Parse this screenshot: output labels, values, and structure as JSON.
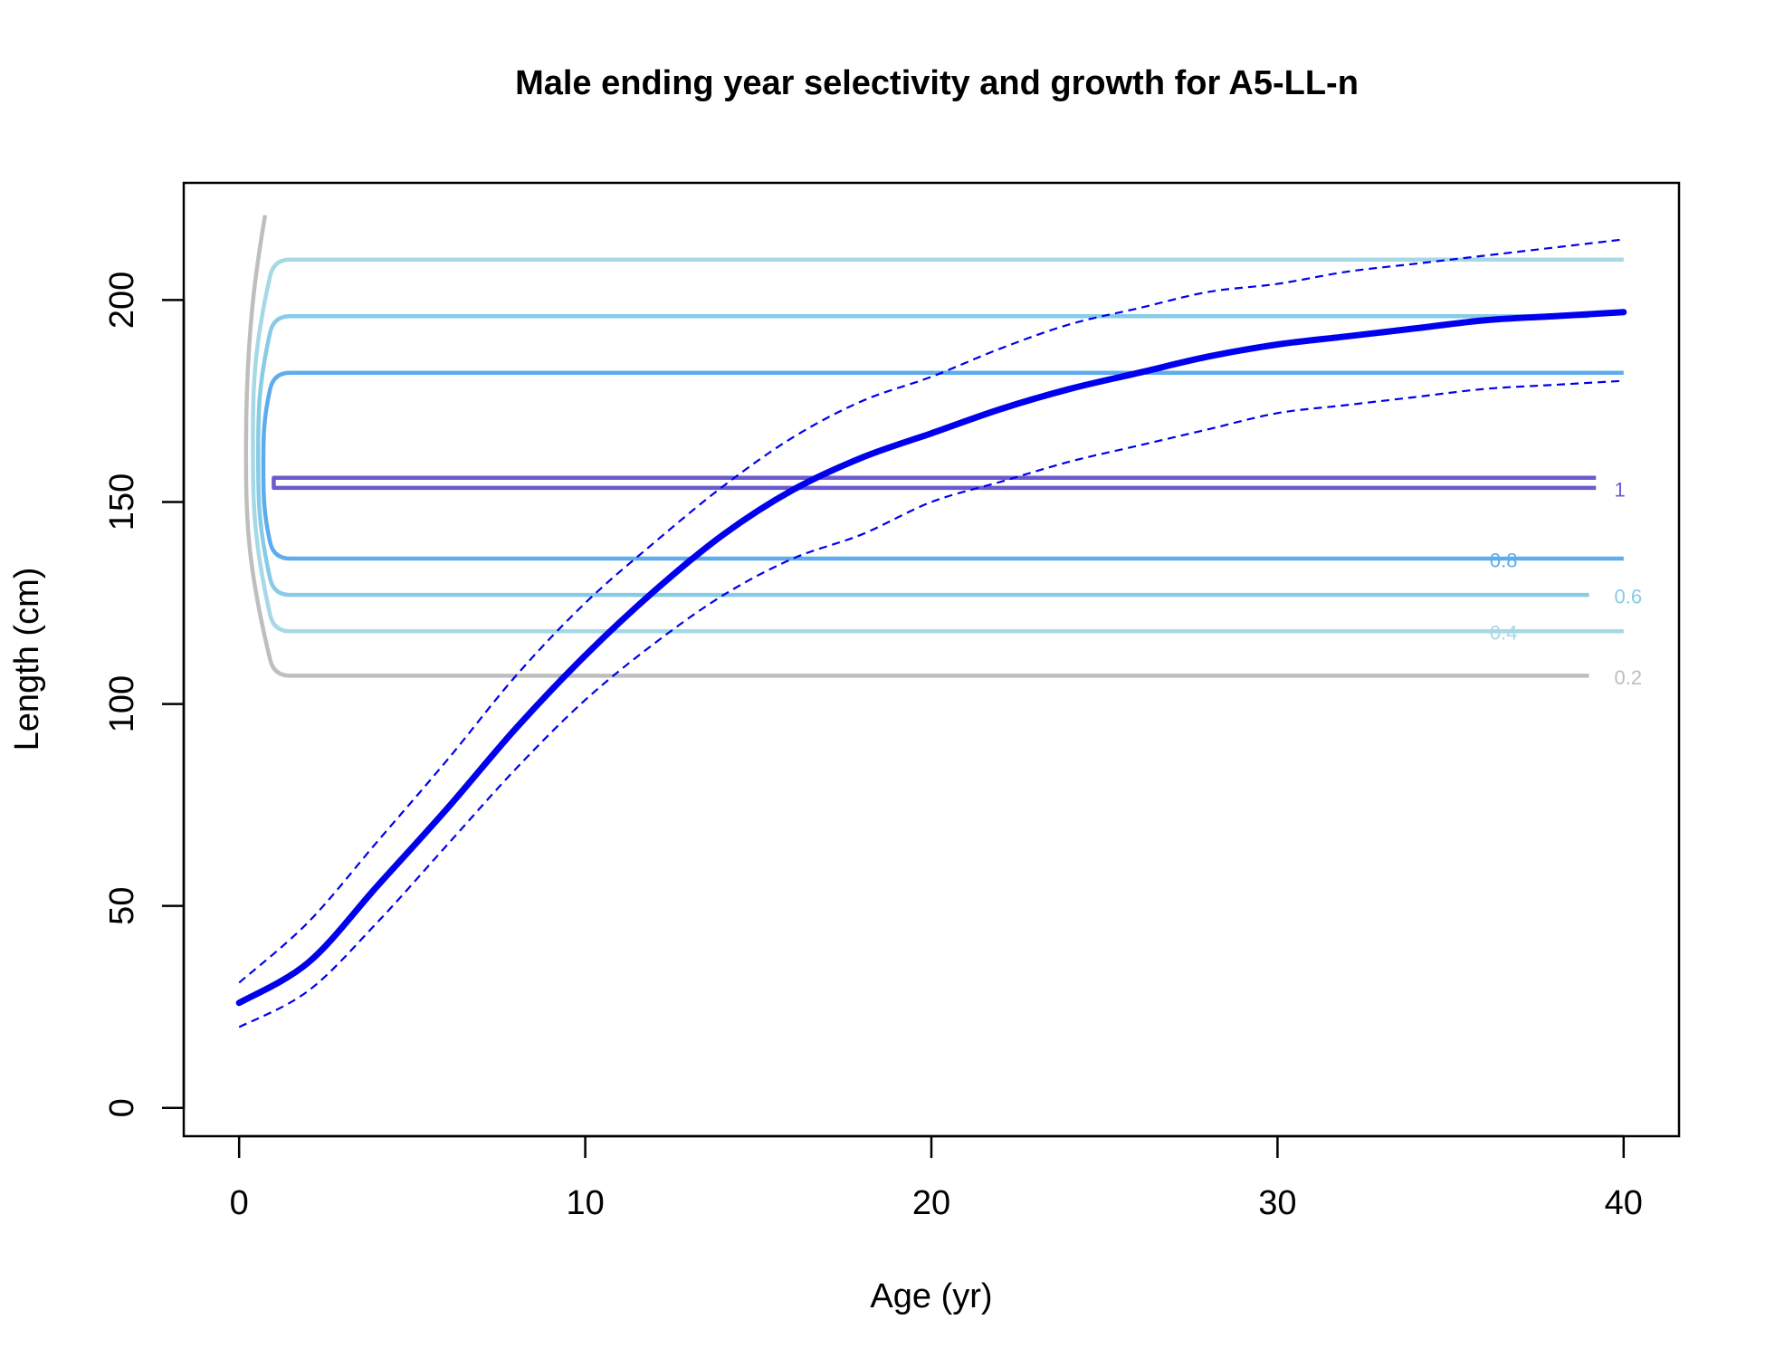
{
  "chart_data": {
    "type": "line",
    "title": "Male ending year selectivity and growth for A5-LL-n",
    "xlabel": "Age (yr)",
    "ylabel": "Length (cm)",
    "xlim": [
      -1.6,
      41.6
    ],
    "ylim": [
      -7,
      229
    ],
    "x_ticks": [
      0,
      10,
      20,
      30,
      40
    ],
    "y_ticks": [
      0,
      50,
      100,
      150,
      200
    ],
    "grid": false,
    "legend": "none",
    "growth_curve": {
      "color": "#0000ee",
      "ages": [
        0,
        2,
        4,
        6,
        8,
        10,
        12,
        14,
        16,
        18,
        20,
        22,
        24,
        26,
        28,
        30,
        32,
        34,
        36,
        38,
        40
      ],
      "mean": [
        26,
        36,
        55,
        74,
        94,
        112,
        128,
        142,
        153,
        161,
        167,
        173,
        178,
        182,
        186,
        189,
        191,
        193,
        195,
        196,
        197
      ],
      "upper": [
        31,
        46,
        66,
        86,
        107,
        125,
        140,
        154,
        166,
        175,
        181,
        188,
        194,
        198,
        202,
        204,
        207,
        209,
        211,
        213,
        215
      ],
      "lower": [
        20,
        29,
        46,
        65,
        84,
        101,
        115,
        127,
        136,
        142,
        150,
        155,
        160,
        164,
        168,
        172,
        174,
        176,
        178,
        179,
        180
      ]
    },
    "selectivity_contours": [
      {
        "level": "0.2",
        "color": "#bebebe",
        "low": 107,
        "high": 221,
        "x_inner": 1.0,
        "x_edge": 0.75,
        "x_bulge": 0.2,
        "x_end": 39.0,
        "label_x": 39.6,
        "label_y": 106,
        "open_top": true,
        "closed": false
      },
      {
        "level": "0.4",
        "color": "#a6d8e6",
        "low": 118,
        "high": 210,
        "x_inner": 1.0,
        "x_edge": 1.0,
        "x_bulge": 0.4,
        "x_end": 40.0,
        "label_x": 36.0,
        "label_y": 117,
        "open_top": false,
        "closed": false
      },
      {
        "level": "0.6",
        "color": "#87cbe6",
        "low": 127,
        "high": 196,
        "x_inner": 1.0,
        "x_edge": 1.0,
        "x_bulge": 0.55,
        "x_end": 39.0,
        "label_x": 39.6,
        "label_y": 126,
        "open_top": false,
        "closed": false
      },
      {
        "level": "0.8",
        "color": "#5cacee",
        "low": 136,
        "high": 182,
        "x_inner": 1.0,
        "x_edge": 1.0,
        "x_bulge": 0.7,
        "x_end": 40.0,
        "label_x": 36.0,
        "label_y": 135,
        "open_top": false,
        "closed": false
      },
      {
        "level": "1",
        "color": "#6a5acd",
        "low": 153.5,
        "high": 156,
        "x_inner": 1.0,
        "x_edge": 1.0,
        "x_bulge": 1.0,
        "x_end": 39.2,
        "label_x": 39.6,
        "label_y": 152.5,
        "open_top": false,
        "closed": true
      }
    ]
  }
}
